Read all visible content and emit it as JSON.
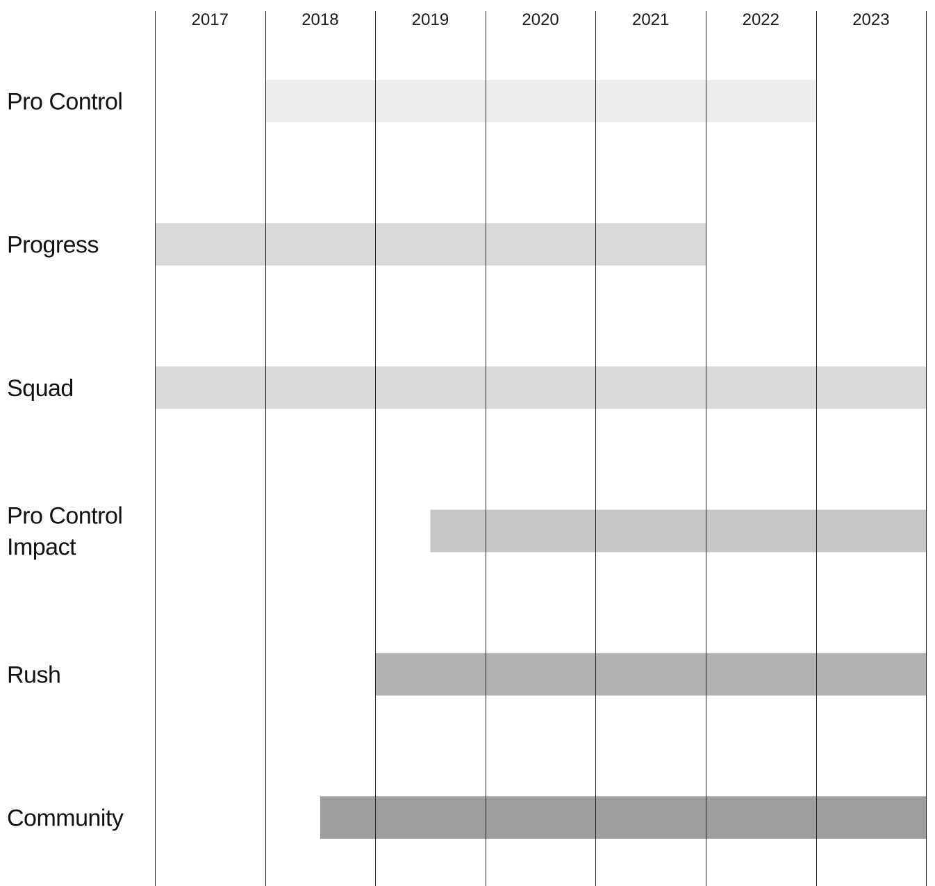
{
  "chart_data": {
    "type": "bar",
    "subtype": "timeline",
    "title": "",
    "xlabel": "",
    "ylabel": "",
    "x_ticks": [
      "2017",
      "2018",
      "2019",
      "2020",
      "2021",
      "2022",
      "2023"
    ],
    "xlim": [
      2017,
      2024
    ],
    "grid": true,
    "series": [
      {
        "name": "Pro Control",
        "label_lines": [
          "Pro Control"
        ],
        "start": 2018,
        "end": 2023,
        "color": "#ededed"
      },
      {
        "name": "Progress",
        "label_lines": [
          "Progress"
        ],
        "start": 2017,
        "end": 2022,
        "color": "#d9d9d9"
      },
      {
        "name": "Squad",
        "label_lines": [
          "Squad"
        ],
        "start": 2017,
        "end": 2024,
        "color": "#d9d9d9"
      },
      {
        "name": "Pro Control Impact",
        "label_lines": [
          "Pro Control",
          "Impact"
        ],
        "start": 2019.5,
        "end": 2024,
        "color": "#c6c6c6"
      },
      {
        "name": "Rush",
        "label_lines": [
          "Rush"
        ],
        "start": 2019,
        "end": 2024,
        "color": "#b2b2b2"
      },
      {
        "name": "Community",
        "label_lines": [
          "Community"
        ],
        "start": 2018.5,
        "end": 2024,
        "color": "#9e9e9e"
      }
    ]
  }
}
